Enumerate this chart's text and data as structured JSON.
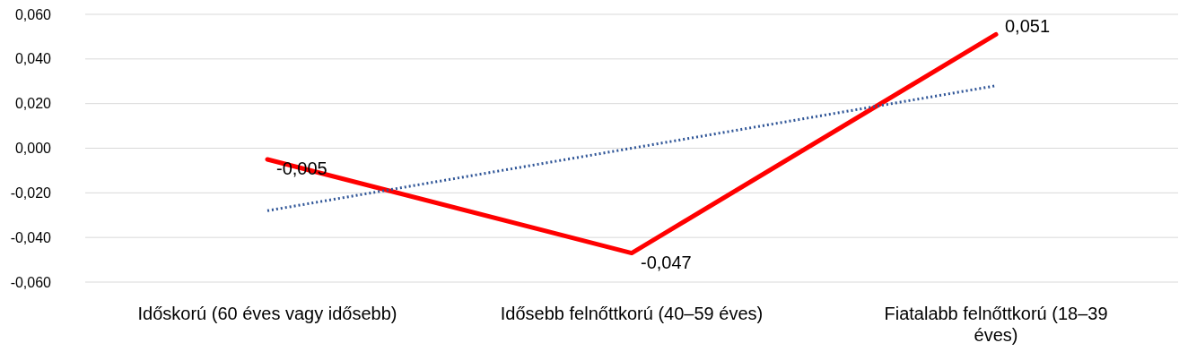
{
  "chart_data": {
    "type": "line",
    "categories": [
      "Időskorú (60 éves vagy idősebb)",
      "Idősebb felnőttkorú (40–59 éves)",
      "Fiatalabb felnőttkorú (18–39 éves)"
    ],
    "series": [
      {
        "color": "#ff0000",
        "values": [
          -0.005,
          -0.047,
          0.051
        ],
        "value_labels": [
          "-0,005",
          "-0,047",
          "0,051"
        ],
        "line_style": "solid"
      },
      {
        "color": "#2f5597",
        "values": [
          -0.028,
          0.0,
          0.028
        ],
        "line_style": "dotted"
      }
    ],
    "ylim": [
      -0.06,
      0.06
    ],
    "yticks": [
      {
        "value": -0.06,
        "label": "-0,060"
      },
      {
        "value": -0.04,
        "label": "-0,040"
      },
      {
        "value": -0.02,
        "label": "-0,020"
      },
      {
        "value": 0,
        "label": "0,000"
      },
      {
        "value": 0.02,
        "label": "0,020"
      },
      {
        "value": 0.04,
        "label": "0,040"
      },
      {
        "value": 0.06,
        "label": "0,060"
      }
    ],
    "grid": "y",
    "marker": "none"
  }
}
